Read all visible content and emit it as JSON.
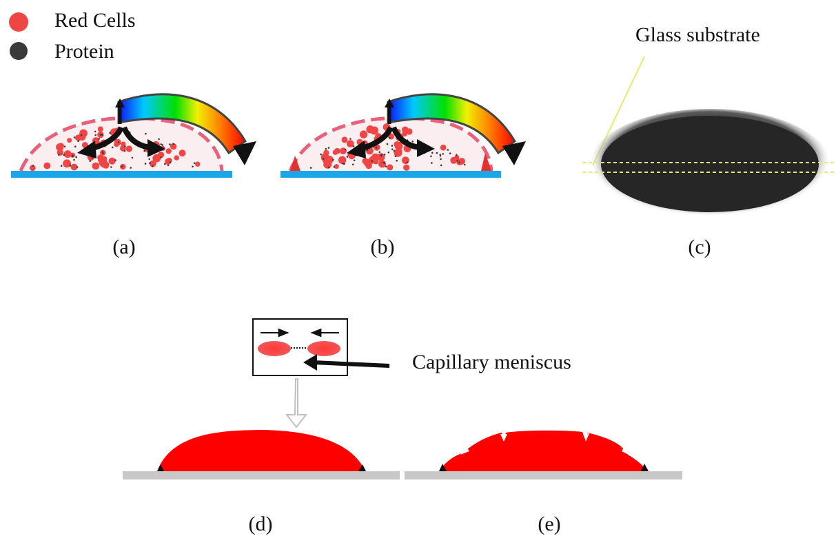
{
  "legend": {
    "items": [
      {
        "label": "Red Cells",
        "icon": "red-cell-dot-icon",
        "color": "#f04545"
      },
      {
        "label": "Protein",
        "icon": "protein-dot-icon",
        "color": "#3a3a3a"
      }
    ]
  },
  "panels": {
    "a": {
      "caption": "(a)"
    },
    "b": {
      "caption": "(b)"
    },
    "c": {
      "caption": "(c)",
      "annotation": "Glass substrate"
    },
    "d": {
      "caption": "(d)",
      "annotation": "Capillary meniscus"
    },
    "e": {
      "caption": "(e)"
    }
  },
  "colors": {
    "red_cell": "#f04545",
    "protein": "#3a3a3a",
    "substrate_blue": "#1aa7e8",
    "substrate_grey": "#c8c8c8",
    "deposit_red": "#ff0000",
    "drop_dark": "#2a2a2a",
    "guide_yellow": "#e8e86a"
  }
}
